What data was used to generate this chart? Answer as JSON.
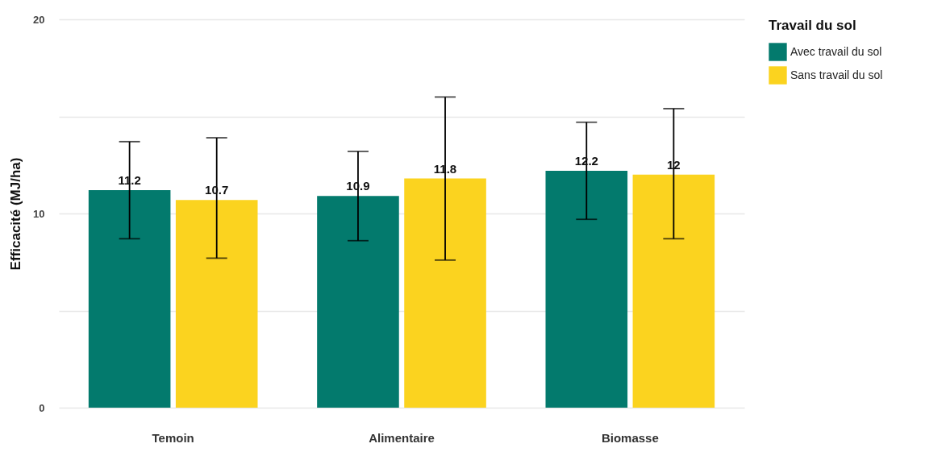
{
  "chart_data": {
    "type": "bar",
    "ylabel": "Efficacité (MJ/ha)",
    "legend_title": "Travail du sol",
    "categories": [
      "Temoin",
      "Alimentaire",
      "Biomasse"
    ],
    "series": [
      {
        "name": "Avec travail du sol",
        "color": "#037a6d",
        "values": [
          11.2,
          10.9,
          12.2
        ],
        "errors": [
          [
            8.7,
            13.7
          ],
          [
            8.6,
            13.2
          ],
          [
            9.7,
            14.7
          ]
        ]
      },
      {
        "name": "Sans travail du sol",
        "color": "#fbd31f",
        "values": [
          10.7,
          11.8,
          12
        ],
        "errors": [
          [
            7.7,
            13.9
          ],
          [
            7.6,
            16.0
          ],
          [
            8.7,
            15.4
          ]
        ]
      }
    ],
    "ylim": [
      0,
      20
    ],
    "yticks": [
      0,
      {
        "value": 5,
        "label": null
      },
      10,
      {
        "value": 15,
        "label": null
      },
      20
    ],
    "grid": "y",
    "legend": "right",
    "data_labels": true
  }
}
